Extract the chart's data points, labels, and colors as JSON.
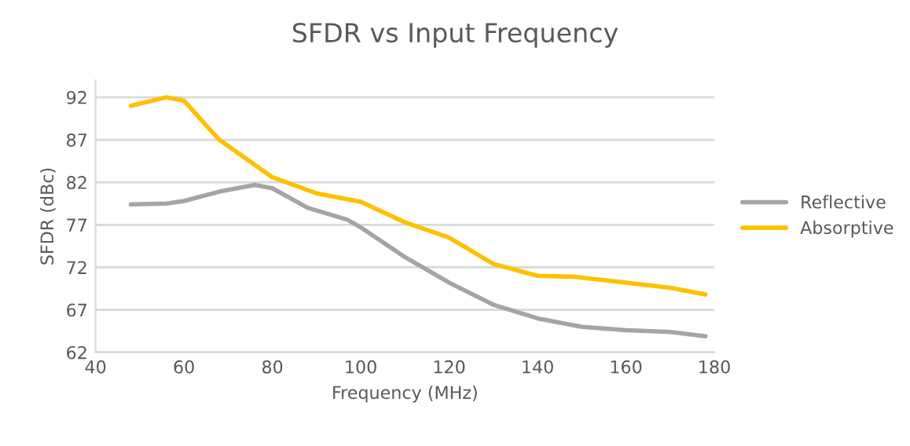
{
  "chart_data": {
    "type": "line",
    "title": "SFDR vs Input Frequency",
    "xlabel": "Frequency (MHz)",
    "ylabel": "SFDR (dBc)",
    "xlim": [
      40,
      180
    ],
    "xticks": [
      40,
      60,
      80,
      100,
      120,
      140,
      160,
      180
    ],
    "ylim": [
      62,
      94
    ],
    "yticks": [
      62,
      67,
      72,
      77,
      82,
      87,
      92
    ],
    "grid": "y",
    "legend": "right",
    "marker": "none",
    "line_style": "solid",
    "series": [
      {
        "name": "Reflective",
        "color": "#a5a5a5",
        "x": [
          48,
          56,
          60,
          68,
          76,
          80,
          88,
          97,
          100,
          110,
          120,
          130,
          140,
          150,
          160,
          170,
          178
        ],
        "values": [
          79.4,
          79.5,
          79.8,
          80.9,
          81.7,
          81.3,
          79.0,
          77.6,
          76.7,
          73.2,
          70.2,
          67.6,
          66.0,
          65.0,
          64.6,
          64.4,
          63.9
        ]
      },
      {
        "name": "Absorptive",
        "color": "#ffc000",
        "x": [
          48,
          56,
          60,
          68,
          80,
          90,
          100,
          110,
          120,
          130,
          140,
          148,
          160,
          170,
          178
        ],
        "values": [
          91.0,
          92.0,
          91.6,
          87.0,
          82.6,
          80.7,
          79.7,
          77.3,
          75.5,
          72.4,
          71.0,
          70.9,
          70.2,
          69.6,
          68.8
        ]
      }
    ]
  }
}
